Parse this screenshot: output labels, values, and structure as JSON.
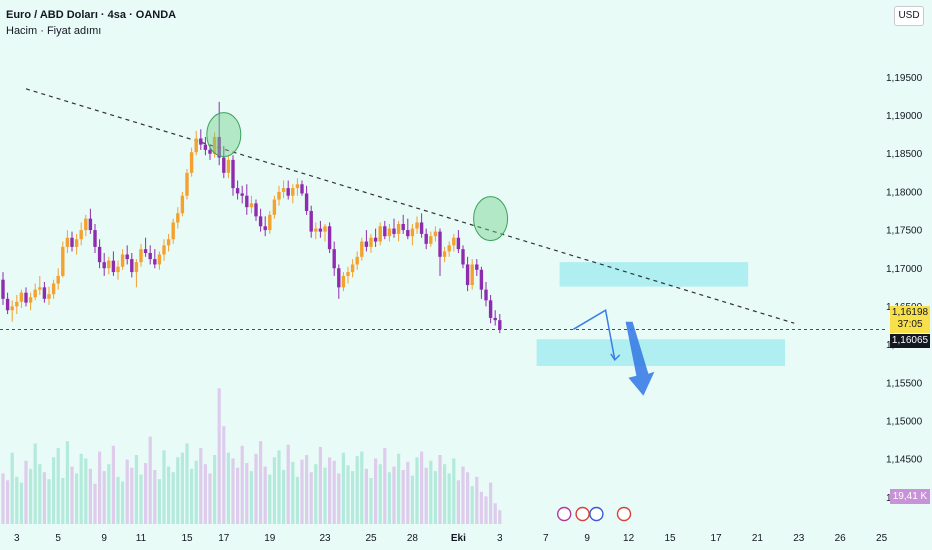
{
  "header": {
    "title": "Euro / ABD Doları · 4sa · OANDA",
    "subtitle": "Hacim · Fiyat adımı",
    "currency_button": "USD"
  },
  "price_badges": {
    "last_price": "1,16198",
    "countdown": "37:05",
    "reference_price": "1,16065",
    "volume": "19,41 K"
  },
  "colors": {
    "background": "#e9fbf7",
    "bull_candle": "#f3a22f",
    "bear_candle": "#8e2cb0",
    "trendline": "#333333",
    "zone": "#a8ecef",
    "arrow": "#3a7de6",
    "circle": "#6fd08a",
    "volume_bar": "#a9e6d6",
    "volume_bar_alt": "#dcc3ea"
  },
  "chart_data": {
    "type": "candlestick",
    "title": "Euro / ABD Doları · 4sa · OANDA",
    "y_ticks": [
      "1,19500",
      "1,19000",
      "1,18500",
      "1,18000",
      "1,17500",
      "1,17000",
      "1,16500",
      "1,16000",
      "1,15500",
      "1,15000",
      "1,14500",
      "1,14000"
    ],
    "y_tick_values": [
      1.195,
      1.19,
      1.185,
      1.18,
      1.175,
      1.17,
      1.165,
      1.16,
      1.155,
      1.15,
      1.145,
      1.14
    ],
    "ylim": [
      1.1365,
      1.1999
    ],
    "x_ticks": [
      "3",
      "5",
      "9",
      "11",
      "15",
      "17",
      "19",
      "23",
      "25",
      "28",
      "Eki",
      "3",
      "7",
      "9",
      "12",
      "15",
      "17",
      "21",
      "23",
      "26",
      "25"
    ],
    "x_tick_index": [
      3,
      12,
      22,
      30,
      40,
      48,
      58,
      70,
      80,
      89,
      99,
      108,
      118,
      127,
      136,
      145,
      155,
      164,
      173,
      182,
      191
    ],
    "candles_ohlc": [
      [
        1.1685,
        1.1695,
        1.1652,
        1.166
      ],
      [
        1.166,
        1.1668,
        1.164,
        1.1645
      ],
      [
        1.1645,
        1.1658,
        1.163,
        1.165
      ],
      [
        1.165,
        1.1665,
        1.164,
        1.1656
      ],
      [
        1.1656,
        1.1672,
        1.1648,
        1.1668
      ],
      [
        1.1668,
        1.1675,
        1.165,
        1.1655
      ],
      [
        1.1655,
        1.1668,
        1.1645,
        1.1662
      ],
      [
        1.1662,
        1.168,
        1.1658,
        1.1672
      ],
      [
        1.1672,
        1.169,
        1.1665,
        1.1675
      ],
      [
        1.1675,
        1.1682,
        1.1655,
        1.166
      ],
      [
        1.166,
        1.1676,
        1.1652,
        1.1666
      ],
      [
        1.1666,
        1.1685,
        1.166,
        1.168
      ],
      [
        1.168,
        1.17,
        1.1672,
        1.169
      ],
      [
        1.169,
        1.1735,
        1.1688,
        1.1728
      ],
      [
        1.1728,
        1.175,
        1.172,
        1.174
      ],
      [
        1.174,
        1.1748,
        1.1722,
        1.1728
      ],
      [
        1.1728,
        1.1745,
        1.1718,
        1.1738
      ],
      [
        1.1738,
        1.176,
        1.173,
        1.175
      ],
      [
        1.175,
        1.177,
        1.1742,
        1.1765
      ],
      [
        1.1765,
        1.1778,
        1.1745,
        1.175
      ],
      [
        1.175,
        1.1758,
        1.172,
        1.1728
      ],
      [
        1.1728,
        1.1738,
        1.17,
        1.1708
      ],
      [
        1.1708,
        1.172,
        1.169,
        1.17
      ],
      [
        1.17,
        1.1715,
        1.1692,
        1.171
      ],
      [
        1.171,
        1.1722,
        1.169,
        1.1695
      ],
      [
        1.1695,
        1.171,
        1.1685,
        1.1702
      ],
      [
        1.1702,
        1.1725,
        1.1698,
        1.1718
      ],
      [
        1.1718,
        1.173,
        1.1705,
        1.1712
      ],
      [
        1.1712,
        1.172,
        1.1688,
        1.1695
      ],
      [
        1.1695,
        1.1712,
        1.1675,
        1.1708
      ],
      [
        1.1708,
        1.1732,
        1.1702,
        1.1725
      ],
      [
        1.1725,
        1.174,
        1.1715,
        1.172
      ],
      [
        1.172,
        1.173,
        1.1705,
        1.1712
      ],
      [
        1.1712,
        1.1725,
        1.17,
        1.1705
      ],
      [
        1.1705,
        1.1722,
        1.1698,
        1.1718
      ],
      [
        1.1718,
        1.1738,
        1.171,
        1.173
      ],
      [
        1.173,
        1.1745,
        1.1722,
        1.1738
      ],
      [
        1.1738,
        1.1765,
        1.1732,
        1.176
      ],
      [
        1.176,
        1.178,
        1.1752,
        1.1772
      ],
      [
        1.1772,
        1.18,
        1.1768,
        1.1795
      ],
      [
        1.1795,
        1.183,
        1.179,
        1.1825
      ],
      [
        1.1825,
        1.1858,
        1.182,
        1.1852
      ],
      [
        1.1852,
        1.188,
        1.1848,
        1.187
      ],
      [
        1.187,
        1.1882,
        1.1855,
        1.1862
      ],
      [
        1.1862,
        1.1872,
        1.1848,
        1.1855
      ],
      [
        1.1855,
        1.1862,
        1.1842,
        1.185
      ],
      [
        1.185,
        1.1878,
        1.1845,
        1.1872
      ],
      [
        1.1872,
        1.1918,
        1.1835,
        1.1845
      ],
      [
        1.1845,
        1.186,
        1.1818,
        1.1825
      ],
      [
        1.1825,
        1.1848,
        1.1818,
        1.1842
      ],
      [
        1.1842,
        1.1848,
        1.1795,
        1.1805
      ],
      [
        1.1805,
        1.1815,
        1.179,
        1.1798
      ],
      [
        1.1798,
        1.1808,
        1.1785,
        1.1795
      ],
      [
        1.1795,
        1.181,
        1.177,
        1.178
      ],
      [
        1.178,
        1.1795,
        1.1772,
        1.1785
      ],
      [
        1.1785,
        1.179,
        1.1762,
        1.1768
      ],
      [
        1.1768,
        1.1778,
        1.1748,
        1.1755
      ],
      [
        1.1755,
        1.1768,
        1.1742,
        1.175
      ],
      [
        1.175,
        1.1775,
        1.1745,
        1.177
      ],
      [
        1.177,
        1.1795,
        1.1765,
        1.179
      ],
      [
        1.179,
        1.1808,
        1.1782,
        1.18
      ],
      [
        1.18,
        1.1815,
        1.1792,
        1.1805
      ],
      [
        1.1805,
        1.1815,
        1.179,
        1.1795
      ],
      [
        1.1795,
        1.181,
        1.1785,
        1.1805
      ],
      [
        1.1805,
        1.1818,
        1.1795,
        1.181
      ],
      [
        1.181,
        1.1815,
        1.1795,
        1.1798
      ],
      [
        1.1798,
        1.1808,
        1.177,
        1.1775
      ],
      [
        1.1775,
        1.1782,
        1.174,
        1.1748
      ],
      [
        1.1748,
        1.176,
        1.1738,
        1.1752
      ],
      [
        1.1752,
        1.1762,
        1.174,
        1.1748
      ],
      [
        1.1748,
        1.1758,
        1.1735,
        1.1755
      ],
      [
        1.1755,
        1.176,
        1.172,
        1.1725
      ],
      [
        1.1725,
        1.1735,
        1.169,
        1.17
      ],
      [
        1.17,
        1.1705,
        1.166,
        1.1675
      ],
      [
        1.1675,
        1.1695,
        1.167,
        1.169
      ],
      [
        1.169,
        1.1702,
        1.168,
        1.1695
      ],
      [
        1.1695,
        1.1712,
        1.1688,
        1.1705
      ],
      [
        1.1705,
        1.1722,
        1.1698,
        1.1715
      ],
      [
        1.1715,
        1.174,
        1.171,
        1.1735
      ],
      [
        1.1735,
        1.175,
        1.1722,
        1.1728
      ],
      [
        1.1728,
        1.1745,
        1.172,
        1.174
      ],
      [
        1.174,
        1.1752,
        1.1728,
        1.1735
      ],
      [
        1.1735,
        1.176,
        1.173,
        1.1755
      ],
      [
        1.1755,
        1.1762,
        1.1738,
        1.1742
      ],
      [
        1.1742,
        1.1758,
        1.1735,
        1.1752
      ],
      [
        1.1752,
        1.1765,
        1.174,
        1.1745
      ],
      [
        1.1745,
        1.1762,
        1.1735,
        1.1758
      ],
      [
        1.1758,
        1.177,
        1.1745,
        1.175
      ],
      [
        1.175,
        1.1765,
        1.1738,
        1.1742
      ],
      [
        1.1742,
        1.1758,
        1.173,
        1.1752
      ],
      [
        1.1752,
        1.1768,
        1.1745,
        1.176
      ],
      [
        1.176,
        1.1772,
        1.174,
        1.1745
      ],
      [
        1.1745,
        1.1752,
        1.1725,
        1.1732
      ],
      [
        1.1732,
        1.1748,
        1.1728,
        1.1742
      ],
      [
        1.1742,
        1.1755,
        1.1735,
        1.1748
      ],
      [
        1.1748,
        1.1752,
        1.169,
        1.1715
      ],
      [
        1.1715,
        1.1728,
        1.1708,
        1.1722
      ],
      [
        1.1722,
        1.1735,
        1.1715,
        1.173
      ],
      [
        1.173,
        1.1745,
        1.1722,
        1.174
      ],
      [
        1.174,
        1.175,
        1.172,
        1.1725
      ],
      [
        1.1725,
        1.173,
        1.17,
        1.1705
      ],
      [
        1.1705,
        1.1715,
        1.167,
        1.1678
      ],
      [
        1.1678,
        1.1712,
        1.1672,
        1.1705
      ],
      [
        1.1705,
        1.1712,
        1.169,
        1.1698
      ],
      [
        1.1698,
        1.1702,
        1.166,
        1.1672
      ],
      [
        1.1672,
        1.1682,
        1.165,
        1.1658
      ],
      [
        1.1658,
        1.1665,
        1.1628,
        1.1635
      ],
      [
        1.1635,
        1.1645,
        1.1625,
        1.1632
      ],
      [
        1.1632,
        1.164,
        1.1615,
        1.162
      ]
    ],
    "volumes": [
      44,
      38,
      62,
      41,
      36,
      55,
      48,
      70,
      52,
      45,
      39,
      58,
      66,
      40,
      72,
      50,
      44,
      61,
      57,
      48,
      35,
      63,
      46,
      52,
      68,
      41,
      37,
      56,
      49,
      60,
      43,
      53,
      76,
      47,
      39,
      64,
      50,
      45,
      58,
      62,
      70,
      48,
      55,
      66,
      52,
      44,
      60,
      118,
      85,
      62,
      57,
      49,
      68,
      53,
      46,
      61,
      72,
      50,
      43,
      58,
      64,
      47,
      69,
      54,
      41,
      56,
      60,
      45,
      52,
      67,
      49,
      58,
      55,
      44,
      62,
      51,
      46,
      59,
      63,
      48,
      40,
      57,
      52,
      66,
      45,
      50,
      61,
      47,
      54,
      42,
      58,
      63,
      49,
      55,
      46,
      60,
      52,
      44,
      57,
      38,
      50,
      45,
      33,
      41,
      28,
      24,
      36,
      18,
      12
    ],
    "volume_max": 120,
    "trendline": {
      "from": [
        5,
        1.1935
      ],
      "to": [
        172,
        1.1628
      ]
    },
    "reference_line": 1.16198,
    "zones": [
      {
        "x_from": 121,
        "x_to": 162,
        "price_from": 1.1676,
        "price_to": 1.1708
      },
      {
        "x_from": 116,
        "x_to": 170,
        "price_from": 1.1572,
        "price_to": 1.1607
      }
    ],
    "circles": [
      {
        "x_index": 48,
        "price": 1.1875
      },
      {
        "x_index": 106,
        "price": 1.1765
      }
    ],
    "projected_path": [
      [
        124,
        1.162
      ],
      [
        131,
        1.1645
      ],
      [
        133,
        1.158
      ]
    ],
    "projected_arrow": {
      "from": [
        136,
        1.163
      ],
      "to": [
        139,
        1.1533
      ]
    }
  }
}
